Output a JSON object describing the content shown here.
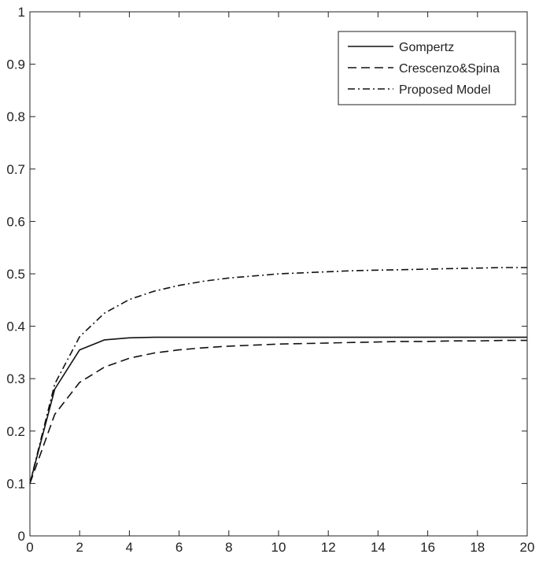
{
  "chart_data": {
    "type": "line",
    "title": "",
    "xlabel": "",
    "ylabel": "",
    "xlim": [
      0,
      20
    ],
    "ylim": [
      0,
      1
    ],
    "xticks": [
      0,
      2,
      4,
      6,
      8,
      10,
      12,
      14,
      16,
      18,
      20
    ],
    "yticks": [
      0,
      0.1,
      0.2,
      0.3,
      0.4,
      0.5,
      0.6,
      0.7,
      0.8,
      0.9,
      1
    ],
    "xtick_labels": [
      "0",
      "2",
      "4",
      "6",
      "8",
      "10",
      "12",
      "14",
      "16",
      "18",
      "20"
    ],
    "ytick_labels": [
      "0",
      "0.1",
      "0.2",
      "0.3",
      "0.4",
      "0.5",
      "0.6",
      "0.7",
      "0.8",
      "0.9",
      "1"
    ],
    "grid": false,
    "legend_position": "top-right",
    "series": [
      {
        "name": "Gompertz",
        "style": "solid",
        "x": [
          0,
          1,
          2,
          3,
          4,
          5,
          6,
          7,
          8,
          9,
          10,
          11,
          12,
          13,
          14,
          15,
          16,
          17,
          18,
          19,
          20
        ],
        "y": [
          0.1,
          0.28,
          0.355,
          0.374,
          0.378,
          0.379,
          0.379,
          0.379,
          0.379,
          0.379,
          0.379,
          0.379,
          0.379,
          0.379,
          0.379,
          0.379,
          0.379,
          0.379,
          0.379,
          0.379,
          0.379
        ]
      },
      {
        "name": "Crescenzo&Spina",
        "style": "dashed",
        "x": [
          0,
          1,
          2,
          3,
          4,
          5,
          6,
          7,
          8,
          9,
          10,
          11,
          12,
          13,
          14,
          15,
          16,
          17,
          18,
          19,
          20
        ],
        "y": [
          0.1,
          0.232,
          0.293,
          0.322,
          0.339,
          0.349,
          0.355,
          0.359,
          0.362,
          0.364,
          0.366,
          0.367,
          0.368,
          0.369,
          0.37,
          0.371,
          0.371,
          0.372,
          0.372,
          0.373,
          0.373
        ]
      },
      {
        "name": "Proposed Model",
        "style": "dashdot",
        "x": [
          0,
          1,
          2,
          3,
          4,
          5,
          6,
          7,
          8,
          9,
          10,
          11,
          12,
          13,
          14,
          15,
          16,
          17,
          18,
          19,
          20
        ],
        "y": [
          0.1,
          0.29,
          0.38,
          0.425,
          0.451,
          0.467,
          0.478,
          0.486,
          0.492,
          0.496,
          0.5,
          0.502,
          0.504,
          0.506,
          0.507,
          0.508,
          0.509,
          0.51,
          0.511,
          0.512,
          0.512
        ]
      }
    ]
  }
}
